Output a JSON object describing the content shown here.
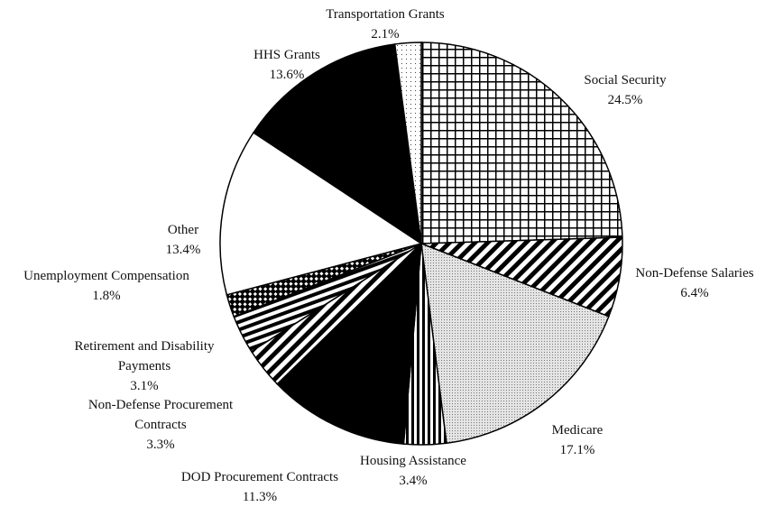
{
  "chart_data": {
    "type": "pie",
    "categories": [
      "Social Security",
      "Non-Defense Salaries",
      "Medicare",
      "Housing Assistance",
      "DOD Procurement Contracts",
      "Non-Defense Procurement Contracts",
      "Retirement and Disability Payments",
      "Unemployment Compensation",
      "Other",
      "HHS Grants",
      "Transportation Grants"
    ],
    "values": [
      24.5,
      6.4,
      17.1,
      3.4,
      11.3,
      3.3,
      3.1,
      1.8,
      13.4,
      13.6,
      2.1
    ],
    "value_labels": [
      "24.5%",
      "6.4%",
      "17.1%",
      "3.4%",
      "11.3%",
      "3.3%",
      "3.1%",
      "1.8%",
      "13.4%",
      "13.6%",
      "2.1%"
    ],
    "patterns": [
      "grid",
      "diagonal",
      "dots",
      "vertical",
      "solid",
      "diagonal",
      "horizontal",
      "checker",
      "blank",
      "solid",
      "sparse-dots"
    ]
  }
}
